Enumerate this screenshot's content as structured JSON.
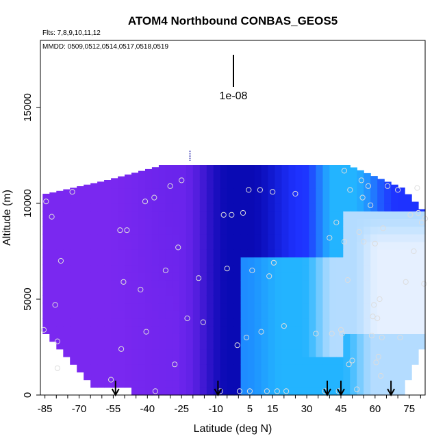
{
  "chart_data": {
    "type": "heatmap",
    "title": "ATOM4 Northbound CONBAS_GEOS5",
    "flights_note": "Flts: 7,8,9,10,11,12",
    "dates_note": "MMDD: 0509,0512,0514,0517,0518,0519",
    "scale_label": "1e-08",
    "xlabel": "Latitude (deg N)",
    "ylabel": "Altitude (m)",
    "xlim": [
      -87,
      82
    ],
    "ylim": [
      0,
      18500
    ],
    "x_tick_values": [
      -85,
      -80,
      -75,
      -70,
      -65,
      -60,
      -55,
      -50,
      -45,
      -40,
      -35,
      -30,
      -25,
      -20,
      -15,
      -10,
      -5,
      0,
      5,
      10,
      15,
      20,
      25,
      30,
      35,
      40,
      45,
      50,
      55,
      60,
      65,
      70,
      75,
      80
    ],
    "x_tick_labels": [
      "-85",
      "-70",
      "-55",
      "-40",
      "-25",
      "-10",
      "5",
      "15",
      "30",
      "45",
      "60",
      "75"
    ],
    "x_label_positions": [
      -85,
      -70,
      -55,
      -40,
      -25,
      -10,
      5,
      15,
      30,
      45,
      60,
      75
    ],
    "y_tick_values": [
      0,
      5000,
      10000,
      15000
    ],
    "y_tick_labels": [
      "0",
      "5000",
      "10000",
      "15000"
    ],
    "profile_arrow_latitudes": [
      -54,
      -9,
      39,
      45,
      67
    ],
    "colors": {
      "violet": "#7a28f0",
      "dark_blue": "#0a0ab4",
      "blue": "#1e32ff",
      "cyan": "#23b4ff",
      "light_blue": "#b4dcff",
      "pale": "#e6f0ff",
      "point_outline": "#dddddd",
      "axis": "#000000"
    },
    "sample_points": [
      [
        -85.5,
        3400
      ],
      [
        -84.5,
        10100
      ],
      [
        -82,
        9300
      ],
      [
        -80.5,
        4700
      ],
      [
        -79.5,
        2800
      ],
      [
        -79.5,
        1400
      ],
      [
        -78,
        7000
      ],
      [
        -73,
        10600
      ],
      [
        -56,
        800
      ],
      [
        -52,
        8600
      ],
      [
        -51.5,
        2400
      ],
      [
        -50.5,
        5900
      ],
      [
        -49,
        8600
      ],
      [
        -43,
        5500
      ],
      [
        -41,
        10100
      ],
      [
        -40.5,
        3300
      ],
      [
        -37,
        10300
      ],
      [
        -36.5,
        200
      ],
      [
        -32,
        6500
      ],
      [
        -30,
        10900
      ],
      [
        -28,
        1600
      ],
      [
        -26.5,
        7700
      ],
      [
        -25,
        11200
      ],
      [
        -22.5,
        4000
      ],
      [
        -17.5,
        6100
      ],
      [
        -15.5,
        3800
      ],
      [
        -8,
        200
      ],
      [
        -6.5,
        9400
      ],
      [
        -5,
        6600
      ],
      [
        -3,
        9400
      ],
      [
        -0.5,
        2600
      ],
      [
        0.5,
        200
      ],
      [
        2,
        9500
      ],
      [
        3.5,
        3000
      ],
      [
        4.5,
        10700
      ],
      [
        5,
        200
      ],
      [
        6,
        6500
      ],
      [
        9.5,
        10700
      ],
      [
        10,
        3300
      ],
      [
        12.5,
        200
      ],
      [
        13.5,
        6200
      ],
      [
        15,
        10600
      ],
      [
        15.5,
        6900
      ],
      [
        17,
        200
      ],
      [
        20,
        3600
      ],
      [
        21,
        200
      ],
      [
        25,
        10500
      ],
      [
        34,
        3200
      ],
      [
        38,
        200
      ],
      [
        40,
        8200
      ],
      [
        41,
        3200
      ],
      [
        43,
        9000
      ],
      [
        44,
        200
      ],
      [
        45,
        3400
      ],
      [
        45.5,
        3200
      ],
      [
        46.5,
        8000
      ],
      [
        46.5,
        11700
      ],
      [
        48,
        6000
      ],
      [
        48.5,
        1600
      ],
      [
        49,
        10700
      ],
      [
        50,
        1800
      ],
      [
        52,
        300
      ],
      [
        53,
        8500
      ],
      [
        54,
        11200
      ],
      [
        54.5,
        10300
      ],
      [
        55,
        8000
      ],
      [
        57,
        10900
      ],
      [
        58,
        9900
      ],
      [
        58.5,
        3100
      ],
      [
        59,
        4100
      ],
      [
        59.5,
        4700
      ],
      [
        60,
        7900
      ],
      [
        60.5,
        1700
      ],
      [
        61,
        4000
      ],
      [
        61.5,
        2000
      ],
      [
        62,
        5000
      ],
      [
        62.5,
        1000
      ],
      [
        63,
        3000
      ],
      [
        63.5,
        8700
      ],
      [
        65.5,
        10900
      ],
      [
        70,
        10700
      ],
      [
        71,
        3000
      ],
      [
        73.5,
        5900
      ],
      [
        75.5,
        9400
      ],
      [
        77,
        7500
      ],
      [
        78.5,
        10800
      ],
      [
        79,
        9500
      ],
      [
        80.5,
        9000
      ],
      [
        81.5,
        5800
      ],
      [
        82,
        9200
      ]
    ]
  }
}
